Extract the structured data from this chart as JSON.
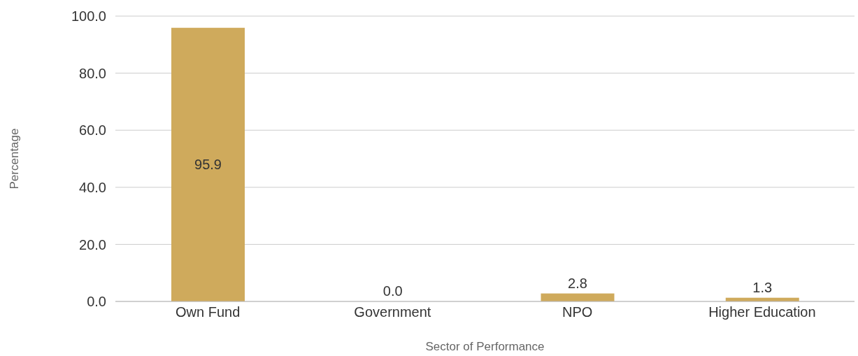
{
  "chart_data": {
    "type": "bar",
    "xlabel": "Sector of Performance",
    "ylabel": "Percentage",
    "categories": [
      "Own Fund",
      "Government",
      "NPO",
      "Higher Education"
    ],
    "values": [
      95.9,
      0.0,
      2.8,
      1.3
    ],
    "value_labels": [
      "95.9",
      "0.0",
      "2.8",
      "1.3"
    ],
    "color": "#cfaa5c",
    "ylim": [
      0,
      100
    ],
    "yticks": [
      {
        "value": 0,
        "label": "0.0"
      },
      {
        "value": 20,
        "label": "20.0"
      },
      {
        "value": 40,
        "label": "40.0"
      },
      {
        "value": 60,
        "label": "60.0"
      },
      {
        "value": 80,
        "label": "80.0"
      },
      {
        "value": 100,
        "label": "100.0"
      }
    ],
    "grid": "y",
    "legend": false
  }
}
